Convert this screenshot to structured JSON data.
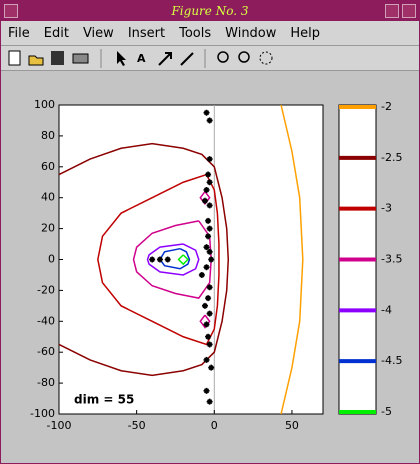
{
  "window": {
    "title": "Figure No. 3",
    "menu": [
      "File",
      "Edit",
      "View",
      "Insert",
      "Tools",
      "Window",
      "Help"
    ]
  },
  "chart_data": {
    "type": "contour",
    "xlim": [
      -100,
      70
    ],
    "ylim": [
      -100,
      100
    ],
    "xticks": [
      -100,
      -50,
      0,
      50
    ],
    "yticks": [
      -100,
      -80,
      -60,
      -40,
      -20,
      0,
      20,
      40,
      60,
      80,
      100
    ],
    "annotation": "dim = 55",
    "reference_x": 0,
    "series": [
      {
        "level": -2,
        "color": "#ffa000",
        "x": [
          43,
          50,
          55,
          57,
          55,
          50,
          43
        ],
        "y": [
          100,
          70,
          40,
          0,
          -40,
          -70,
          -100
        ]
      },
      {
        "level": -2.5,
        "color": "#8b0000",
        "x": [
          -100,
          -80,
          -60,
          -40,
          -20,
          -8,
          0,
          5,
          8,
          9,
          8,
          5,
          0,
          -8,
          -20,
          -40,
          -60,
          -80,
          -100
        ],
        "y": [
          55,
          65,
          72,
          75,
          72,
          68,
          60,
          40,
          20,
          0,
          -20,
          -40,
          -60,
          -68,
          -72,
          -75,
          -72,
          -65,
          -55
        ]
      },
      {
        "level": -3,
        "color": "#c00000",
        "x": [
          -5,
          -20,
          -40,
          -60,
          -72,
          -75,
          -72,
          -60,
          -40,
          -20,
          -5,
          0,
          2,
          3,
          3,
          2,
          0,
          -5
        ],
        "y": [
          55,
          50,
          40,
          30,
          15,
          0,
          -15,
          -30,
          -40,
          -50,
          -55,
          -45,
          -30,
          -10,
          10,
          30,
          45,
          55
        ]
      },
      {
        "level": -3.5,
        "color": "#d0008c",
        "x": [
          -10,
          -25,
          -40,
          -50,
          -52,
          -50,
          -40,
          -25,
          -10,
          -3,
          -2,
          -3,
          -10,
          null,
          -6,
          -3,
          -6,
          -9,
          -6,
          null,
          -6,
          -3,
          -6,
          -9,
          -6
        ],
        "y": [
          25,
          22,
          17,
          8,
          0,
          -8,
          -17,
          -22,
          -25,
          -15,
          0,
          15,
          25,
          null,
          44,
          40,
          36,
          40,
          44,
          null,
          -36,
          -40,
          -44,
          -40,
          -36
        ]
      },
      {
        "level": -4,
        "color": "#8c00ff",
        "x": [
          -20,
          -35,
          -42,
          -43,
          -42,
          -35,
          -20,
          -12,
          -10,
          -12,
          -20
        ],
        "y": [
          10,
          8,
          3,
          0,
          -3,
          -8,
          -10,
          -6,
          0,
          6,
          10
        ]
      },
      {
        "level": -4.5,
        "color": "#0030d0",
        "x": [
          -22,
          -32,
          -35,
          -32,
          -22,
          -17,
          -16,
          -18,
          -22
        ],
        "y": [
          7,
          5,
          0,
          -4,
          -6,
          -3,
          0,
          5,
          7
        ]
      },
      {
        "level": -5,
        "color": "#00f000",
        "x": [
          -20,
          -17,
          -20,
          -23,
          -20
        ],
        "y": [
          3,
          0,
          -3,
          0,
          3
        ]
      }
    ],
    "points": {
      "x": [
        -5,
        -3,
        -3,
        -4,
        -3,
        -5,
        -6,
        -3,
        -4,
        -3,
        -4,
        -5,
        -3,
        -2,
        -35,
        -40,
        -30,
        -5,
        -8,
        -3,
        -4,
        -6,
        -3,
        -5,
        -4,
        -3,
        -5,
        -2,
        -5,
        -3
      ],
      "y": [
        95,
        90,
        65,
        55,
        50,
        45,
        38,
        35,
        25,
        20,
        15,
        8,
        5,
        0,
        0,
        0,
        0,
        -5,
        -10,
        -18,
        -25,
        -30,
        -35,
        -42,
        -50,
        -55,
        -65,
        -70,
        -85,
        -92
      ]
    },
    "colorbar": {
      "ylim": [
        -5,
        -2
      ]
    }
  }
}
